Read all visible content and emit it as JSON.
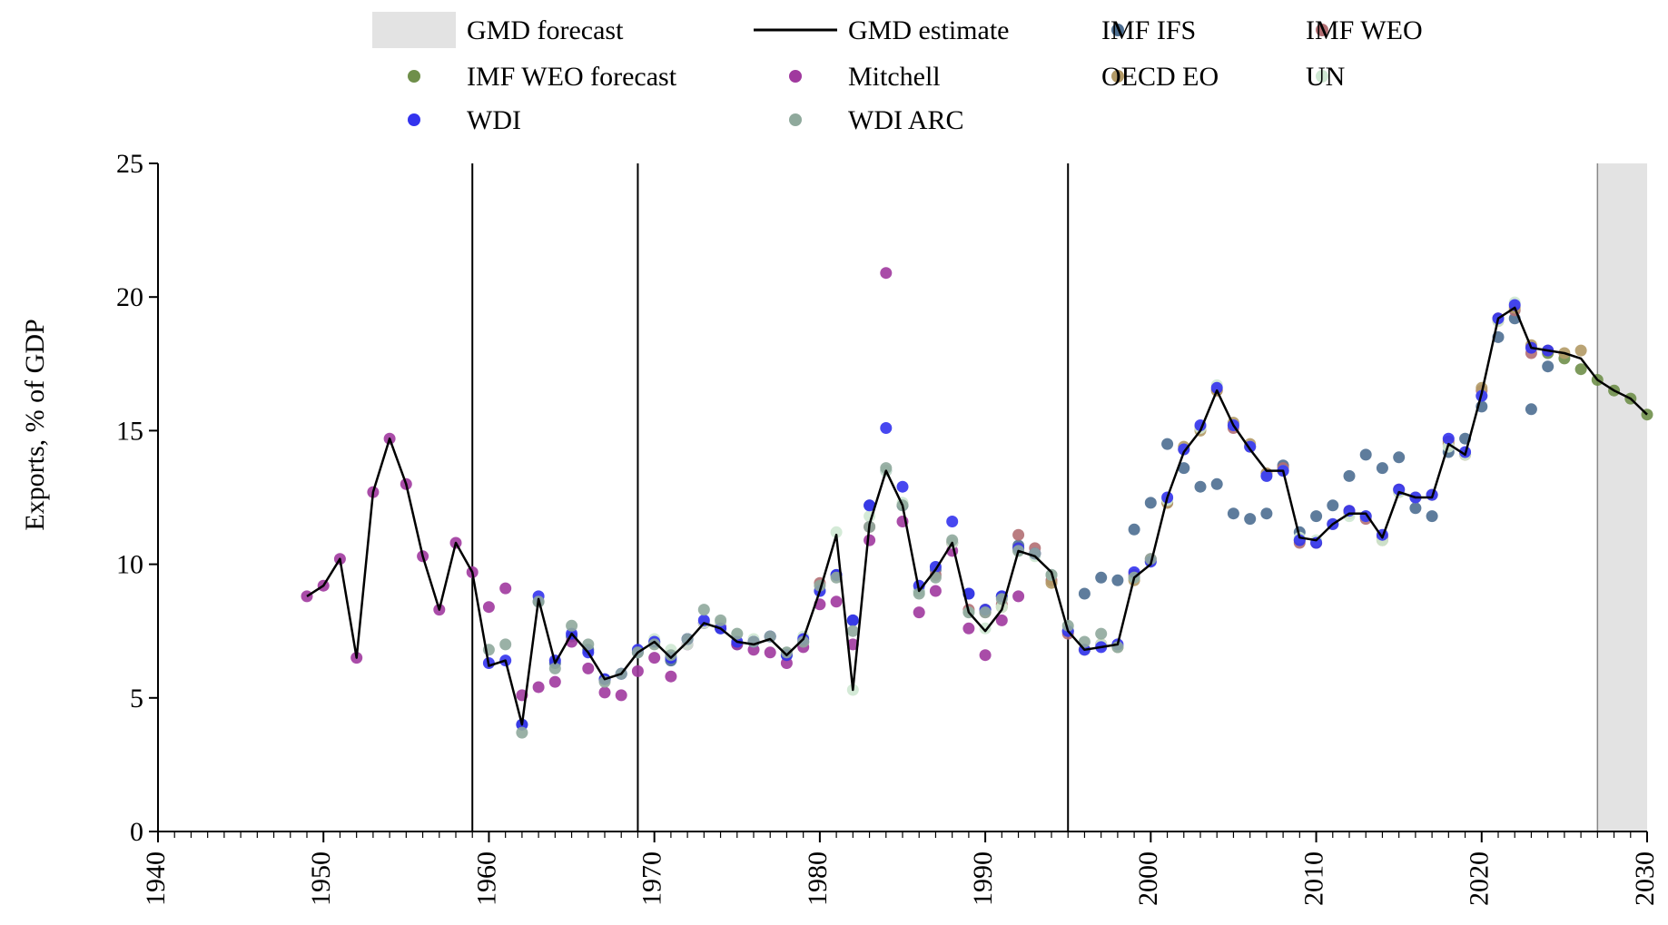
{
  "chart_data": {
    "type": "scatter",
    "title": "",
    "xlabel": "",
    "ylabel": "Exports, % of GDP",
    "xlim": [
      1940,
      2030
    ],
    "ylim": [
      0,
      25
    ],
    "x_ticks": [
      1940,
      1950,
      1960,
      1970,
      1980,
      1990,
      2000,
      2010,
      2020,
      2030
    ],
    "y_ticks": [
      0,
      5,
      10,
      15,
      20,
      25
    ],
    "grid": false,
    "legend_position": "top",
    "vertical_lines": [
      1959,
      1969,
      1995
    ],
    "forecast_region": {
      "label": "GMD forecast",
      "start": 2027,
      "end": 2030,
      "color": "#e3e3e3"
    },
    "series": [
      {
        "name": "GMD estimate",
        "kind": "line",
        "color": "#000000",
        "x": [
          1949,
          1950,
          1951,
          1952,
          1953,
          1954,
          1955,
          1956,
          1957,
          1958,
          1959,
          1960,
          1961,
          1962,
          1963,
          1964,
          1965,
          1966,
          1967,
          1968,
          1969,
          1970,
          1971,
          1972,
          1973,
          1974,
          1975,
          1976,
          1977,
          1978,
          1979,
          1980,
          1981,
          1982,
          1983,
          1984,
          1985,
          1986,
          1987,
          1988,
          1989,
          1990,
          1991,
          1992,
          1993,
          1994,
          1995,
          1996,
          1997,
          1998,
          1999,
          2000,
          2001,
          2002,
          2003,
          2004,
          2005,
          2006,
          2007,
          2008,
          2009,
          2010,
          2011,
          2012,
          2013,
          2014,
          2015,
          2016,
          2017,
          2018,
          2019,
          2020,
          2021,
          2022,
          2023,
          2024,
          2025,
          2026,
          2027,
          2028,
          2029,
          2030
        ],
        "y": [
          8.8,
          9.2,
          10.2,
          6.5,
          12.7,
          14.7,
          13.0,
          10.3,
          8.3,
          10.8,
          9.7,
          6.2,
          6.4,
          4.0,
          8.7,
          6.3,
          7.4,
          6.7,
          5.7,
          5.9,
          6.7,
          7.1,
          6.5,
          7.1,
          7.8,
          7.6,
          7.1,
          7.0,
          7.2,
          6.6,
          7.2,
          9.0,
          11.1,
          5.3,
          11.5,
          13.5,
          12.2,
          9.0,
          9.8,
          10.8,
          8.2,
          7.5,
          8.3,
          10.5,
          10.3,
          9.7,
          7.5,
          6.8,
          6.9,
          7.0,
          9.5,
          10.0,
          12.5,
          14.2,
          15.0,
          16.5,
          15.2,
          14.3,
          13.5,
          13.5,
          11.0,
          10.9,
          11.5,
          11.9,
          11.9,
          11.0,
          12.7,
          12.5,
          12.5,
          14.5,
          14.1,
          16.4,
          19.2,
          19.6,
          18.1,
          18.0,
          17.9,
          17.7,
          16.9,
          16.5,
          16.2,
          15.6
        ]
      },
      {
        "name": "IMF IFS",
        "kind": "points",
        "color": "#4d6e91",
        "x": [
          1962,
          1963,
          1964,
          1965,
          1966,
          1967,
          1968,
          1969,
          1970,
          1971,
          1972,
          1973,
          1974,
          1975,
          1976,
          1977,
          1978,
          1979,
          1980,
          1981,
          1982,
          1983,
          1984,
          1985,
          1986,
          1987,
          1988,
          1989,
          1990,
          1991,
          1992,
          1993,
          1994,
          1995,
          1996,
          1997,
          1998,
          1999,
          2000,
          2001,
          2002,
          2003,
          2004,
          2005,
          2006,
          2007,
          2008,
          2009,
          2010,
          2011,
          2012,
          2013,
          2014,
          2015,
          2016,
          2017,
          2018,
          2019,
          2020,
          2021,
          2022,
          2023,
          2024
        ],
        "y": [
          4.0,
          8.6,
          6.3,
          7.3,
          6.8,
          5.7,
          5.9,
          6.7,
          7.1,
          6.4,
          7.2,
          7.8,
          7.6,
          7.0,
          7.1,
          7.3,
          6.6,
          7.1,
          9.0,
          9.6,
          7.9,
          12.2,
          13.5,
          12.2,
          9.0,
          9.8,
          10.8,
          8.9,
          8.3,
          8.8,
          10.7,
          10.4,
          9.6,
          7.5,
          8.9,
          9.5,
          9.4,
          11.3,
          12.3,
          14.5,
          13.6,
          12.9,
          13.0,
          11.9,
          11.7,
          11.9,
          13.7,
          11.2,
          11.8,
          12.2,
          13.3,
          14.1,
          13.6,
          14.0,
          12.1,
          11.8,
          14.2,
          14.7,
          15.9,
          18.5,
          19.2,
          15.8,
          17.4
        ]
      },
      {
        "name": "IMF WEO",
        "kind": "points",
        "color": "#b36f73",
        "x": [
          1980,
          1983,
          1987,
          1988,
          1989,
          1990,
          1991,
          1992,
          1993,
          1994,
          1995,
          1996,
          1997,
          1998,
          1999,
          2000,
          2001,
          2002,
          2003,
          2004,
          2005,
          2006,
          2007,
          2008,
          2009,
          2010,
          2011,
          2012,
          2013,
          2014,
          2015,
          2016,
          2017,
          2018,
          2019,
          2020,
          2021,
          2022,
          2023
        ],
        "y": [
          9.3,
          11.4,
          9.6,
          10.8,
          8.3,
          8.2,
          8.5,
          11.1,
          10.6,
          9.4,
          7.4,
          6.8,
          7.0,
          6.9,
          9.6,
          10.2,
          12.3,
          14.3,
          15.1,
          16.5,
          15.1,
          14.4,
          13.4,
          13.6,
          10.8,
          10.8,
          11.5,
          12.0,
          11.7,
          11.0,
          12.8,
          12.5,
          12.6,
          14.6,
          14.1,
          16.5,
          19.2,
          19.5,
          17.9
        ]
      },
      {
        "name": "IMF WEO forecast",
        "kind": "points",
        "color": "#6f8f4a",
        "x": [
          2024,
          2025,
          2026,
          2027,
          2028,
          2029,
          2030
        ],
        "y": [
          17.9,
          17.7,
          17.3,
          16.9,
          16.5,
          16.2,
          15.6
        ]
      },
      {
        "name": "Mitchell",
        "kind": "points",
        "color": "#a0399e",
        "x": [
          1949,
          1950,
          1951,
          1952,
          1953,
          1954,
          1955,
          1956,
          1957,
          1958,
          1959,
          1960,
          1961,
          1962,
          1963,
          1964,
          1965,
          1966,
          1967,
          1968,
          1969,
          1970,
          1971,
          1972,
          1973,
          1974,
          1975,
          1976,
          1977,
          1978,
          1979,
          1980,
          1981,
          1982,
          1983,
          1984,
          1985,
          1986,
          1987,
          1988,
          1989,
          1990,
          1991,
          1992
        ],
        "y": [
          8.8,
          9.2,
          10.2,
          6.5,
          12.7,
          14.7,
          13.0,
          10.3,
          8.3,
          10.8,
          9.7,
          8.4,
          9.1,
          5.1,
          5.4,
          5.6,
          7.1,
          6.1,
          5.2,
          5.1,
          6.0,
          6.5,
          5.8,
          7.0,
          7.8,
          7.7,
          7.0,
          6.8,
          6.7,
          6.3,
          6.9,
          8.5,
          8.6,
          7.0,
          10.9,
          20.9,
          11.6,
          8.2,
          9.0,
          10.5,
          7.6,
          6.6,
          7.9,
          8.8
        ]
      },
      {
        "name": "OECD EO",
        "kind": "points",
        "color": "#b39a66",
        "x": [
          1990,
          1991,
          1992,
          1993,
          1994,
          1995,
          1996,
          1997,
          1998,
          1999,
          2000,
          2001,
          2002,
          2003,
          2004,
          2005,
          2006,
          2007,
          2008,
          2009,
          2010,
          2011,
          2012,
          2013,
          2014,
          2015,
          2016,
          2017,
          2018,
          2019,
          2020,
          2021,
          2022,
          2023,
          2024,
          2025,
          2026
        ],
        "y": [
          8.3,
          8.4,
          10.6,
          10.4,
          9.3,
          7.5,
          6.8,
          7.0,
          6.9,
          9.4,
          10.1,
          12.3,
          14.4,
          15.0,
          16.5,
          15.3,
          14.5,
          13.4,
          13.5,
          10.9,
          10.8,
          11.5,
          11.9,
          11.8,
          10.9,
          12.7,
          12.5,
          12.6,
          14.5,
          14.1,
          16.6,
          19.1,
          19.6,
          18.2,
          18.0,
          17.9,
          18.0
        ]
      },
      {
        "name": "UN",
        "kind": "points",
        "color": "#cfe8d3",
        "x": [
          1970,
          1971,
          1972,
          1973,
          1974,
          1975,
          1976,
          1977,
          1978,
          1979,
          1980,
          1981,
          1982,
          1983,
          1984,
          1985,
          1986,
          1987,
          1988,
          1989,
          1990,
          1991,
          1992,
          1993,
          1994,
          1995,
          1996,
          1997,
          1998,
          1999,
          2000,
          2001,
          2002,
          2003,
          2004,
          2005,
          2006,
          2007,
          2008,
          2009,
          2010,
          2011,
          2012,
          2013,
          2014,
          2015,
          2016,
          2017,
          2018,
          2019,
          2020,
          2021,
          2022
        ],
        "y": [
          7.2,
          6.8,
          7.0,
          7.8,
          7.8,
          7.4,
          7.2,
          7.3,
          6.7,
          7.3,
          9.0,
          11.2,
          5.3,
          11.8,
          13.5,
          12.3,
          9.0,
          9.9,
          10.8,
          8.2,
          7.6,
          8.4,
          10.5,
          10.3,
          9.6,
          7.6,
          6.8,
          7.0,
          6.9,
          9.5,
          10.1,
          12.4,
          14.3,
          15.1,
          16.7,
          15.2,
          14.4,
          13.3,
          13.5,
          11.0,
          10.9,
          11.5,
          11.8,
          11.8,
          10.9,
          12.7,
          12.5,
          12.6,
          14.4,
          14.1,
          16.3,
          19.1,
          19.8
        ]
      },
      {
        "name": "WDI",
        "kind": "points",
        "color": "#3333ee",
        "x": [
          1960,
          1961,
          1962,
          1963,
          1964,
          1965,
          1966,
          1967,
          1968,
          1969,
          1970,
          1971,
          1972,
          1973,
          1974,
          1975,
          1976,
          1977,
          1978,
          1979,
          1980,
          1981,
          1982,
          1983,
          1984,
          1985,
          1986,
          1987,
          1988,
          1989,
          1990,
          1991,
          1992,
          1993,
          1995,
          1996,
          1997,
          1998,
          1999,
          2000,
          2001,
          2002,
          2003,
          2004,
          2005,
          2006,
          2007,
          2008,
          2009,
          2010,
          2011,
          2012,
          2013,
          2014,
          2015,
          2016,
          2017,
          2018,
          2019,
          2020,
          2021,
          2022,
          2023,
          2024
        ],
        "y": [
          6.3,
          6.4,
          4.0,
          8.8,
          6.4,
          7.4,
          6.7,
          5.7,
          5.9,
          6.8,
          7.1,
          6.5,
          7.2,
          7.9,
          7.6,
          7.1,
          7.1,
          7.3,
          6.6,
          7.2,
          9.0,
          9.6,
          7.9,
          12.2,
          15.1,
          12.9,
          9.2,
          9.9,
          11.6,
          8.9,
          8.3,
          8.8,
          10.6,
          10.4,
          7.5,
          6.8,
          6.9,
          7.0,
          9.7,
          10.1,
          12.5,
          14.3,
          15.2,
          16.6,
          15.2,
          14.4,
          13.3,
          13.5,
          10.9,
          10.8,
          11.5,
          12.0,
          11.8,
          11.1,
          12.8,
          12.5,
          12.6,
          14.7,
          14.2,
          16.3,
          19.2,
          19.7,
          18.1,
          18.0
        ]
      },
      {
        "name": "WDI ARC",
        "kind": "points",
        "color": "#8fa99c",
        "x": [
          1960,
          1961,
          1962,
          1963,
          1964,
          1965,
          1966,
          1967,
          1968,
          1969,
          1970,
          1971,
          1972,
          1973,
          1974,
          1975,
          1976,
          1977,
          1978,
          1979,
          1980,
          1981,
          1982,
          1983,
          1984,
          1985,
          1986,
          1987,
          1988,
          1989,
          1990,
          1991,
          1992,
          1993,
          1994,
          1995,
          1996,
          1997,
          1998,
          1999,
          2000
        ],
        "y": [
          6.8,
          7.0,
          3.7,
          8.6,
          6.1,
          7.7,
          7.0,
          5.6,
          5.9,
          6.7,
          7.0,
          6.6,
          7.2,
          8.3,
          7.9,
          7.4,
          7.1,
          7.3,
          6.7,
          7.1,
          9.2,
          9.5,
          7.5,
          11.4,
          13.6,
          12.2,
          8.9,
          9.5,
          10.9,
          8.2,
          8.2,
          8.7,
          10.5,
          10.4,
          9.6,
          7.7,
          7.1,
          7.4,
          6.9,
          9.5,
          10.2
        ]
      }
    ],
    "legend": [
      {
        "label": "GMD forecast",
        "kind": "patch",
        "color": "#e3e3e3"
      },
      {
        "label": "GMD estimate",
        "kind": "line",
        "color": "#000000"
      },
      {
        "label": "IMF IFS",
        "kind": "dot",
        "color": "#4d6e91"
      },
      {
        "label": "IMF WEO",
        "kind": "dot",
        "color": "#b36f73"
      },
      {
        "label": "IMF WEO forecast",
        "kind": "dot",
        "color": "#6f8f4a"
      },
      {
        "label": "Mitchell",
        "kind": "dot",
        "color": "#a0399e"
      },
      {
        "label": "OECD EO",
        "kind": "dot",
        "color": "#b39a66"
      },
      {
        "label": "UN",
        "kind": "dot",
        "color": "#cfe8d3"
      },
      {
        "label": "WDI",
        "kind": "dot",
        "color": "#3333ee"
      },
      {
        "label": "WDI ARC",
        "kind": "dot",
        "color": "#8fa99c"
      }
    ]
  }
}
